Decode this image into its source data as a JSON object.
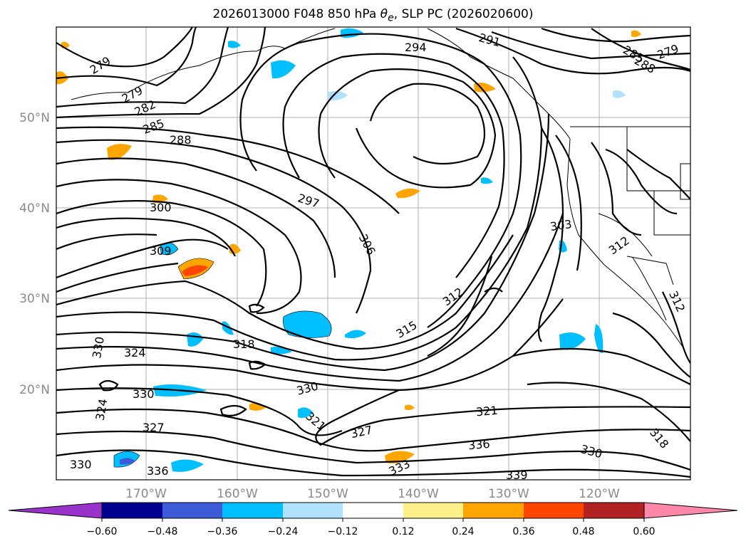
{
  "title": {
    "prefix": "2026013000 F048 850 hPa ",
    "symbol": "θ",
    "symbol_sub": "e",
    "suffix": ", SLP PC (2026020600)"
  },
  "axes": {
    "lon_ticks": [
      "170°W",
      "160°W",
      "150°W",
      "140°W",
      "130°W",
      "120°W"
    ],
    "lat_ticks": [
      "50°N",
      "40°N",
      "30°N",
      "20°N"
    ]
  },
  "contour_labels": [
    "279",
    "279",
    "282",
    "285",
    "288",
    "291",
    "294",
    "297",
    "300",
    "303",
    "306",
    "309",
    "312",
    "312",
    "312",
    "315",
    "318",
    "318",
    "321",
    "321",
    "324",
    "324",
    "327",
    "327",
    "330",
    "330",
    "330",
    "330",
    "330",
    "333",
    "336",
    "336",
    "339",
    "285",
    "288",
    "279"
  ],
  "colorbar": {
    "labels": [
      "−0.60",
      "−0.48",
      "−0.36",
      "−0.24",
      "−0.12",
      "0.12",
      "0.24",
      "0.36",
      "0.48",
      "0.60"
    ],
    "colors": [
      "#9933cc",
      "#000090",
      "#3d5bd9",
      "#00bfff",
      "#b0e2ff",
      "#ffffff",
      "#fff08a",
      "#ffa500",
      "#ff4500",
      "#b22222",
      "#ff88aa"
    ]
  }
}
